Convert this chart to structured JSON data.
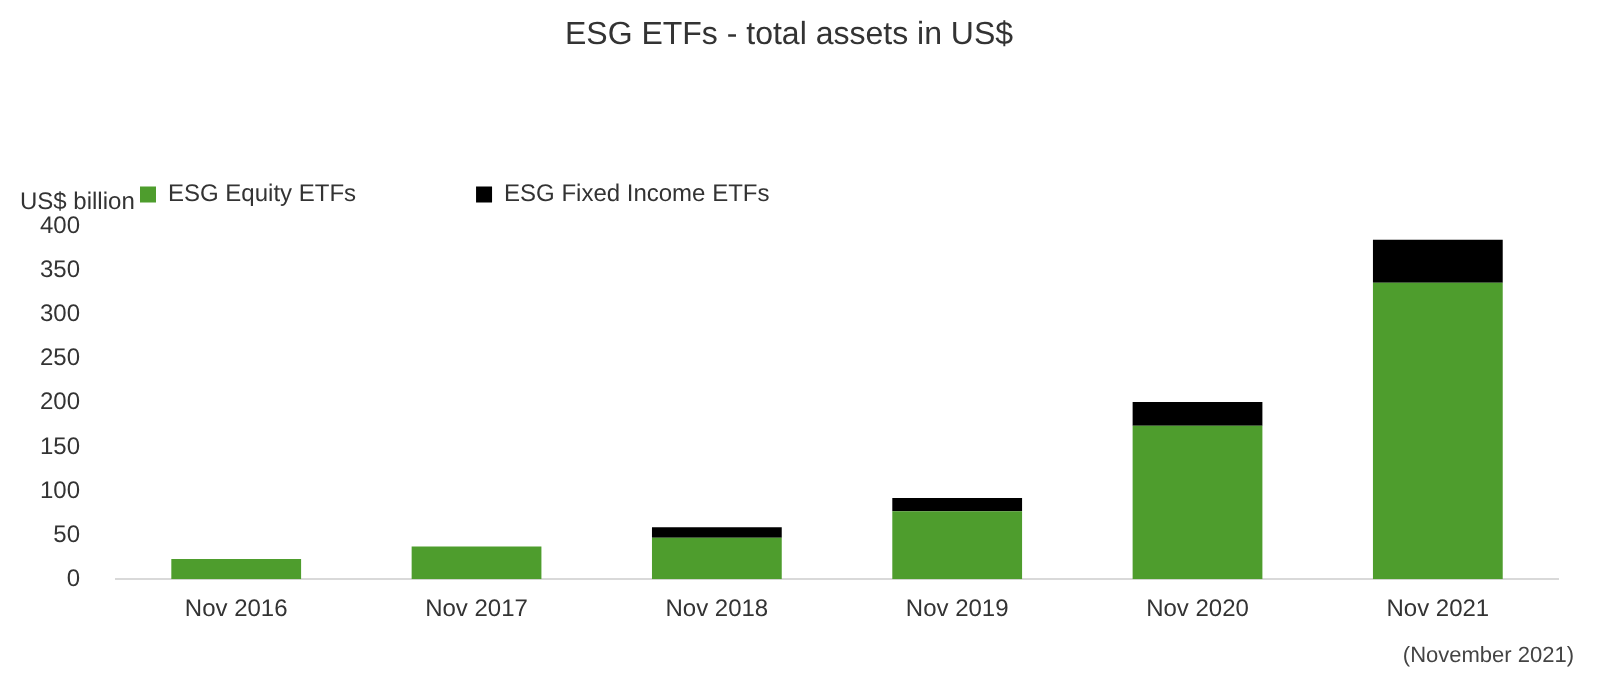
{
  "chart_data": {
    "type": "bar",
    "title": "ESG ETFs - total assets in US$",
    "ylabel": "US$ billion",
    "categories": [
      "Nov 2016",
      "Nov 2017",
      "Nov 2018",
      "Nov 2019",
      "Nov 2020",
      "Nov 2021"
    ],
    "series": [
      {
        "name": "ESG Equity ETFs",
        "color": "#4e9d2d",
        "values": [
          23,
          37,
          47,
          77,
          174,
          336
        ]
      },
      {
        "name": "ESG Fixed Income ETFs",
        "color": "#000000",
        "values": [
          0,
          0,
          12,
          15,
          27,
          49
        ]
      }
    ],
    "stacked": true,
    "ylim": [
      0,
      400
    ],
    "yticks": [
      0,
      50,
      100,
      150,
      200,
      250,
      300,
      350,
      400
    ],
    "grid": false,
    "legend": "top left",
    "annotations": [
      "(November 2021)"
    ]
  }
}
